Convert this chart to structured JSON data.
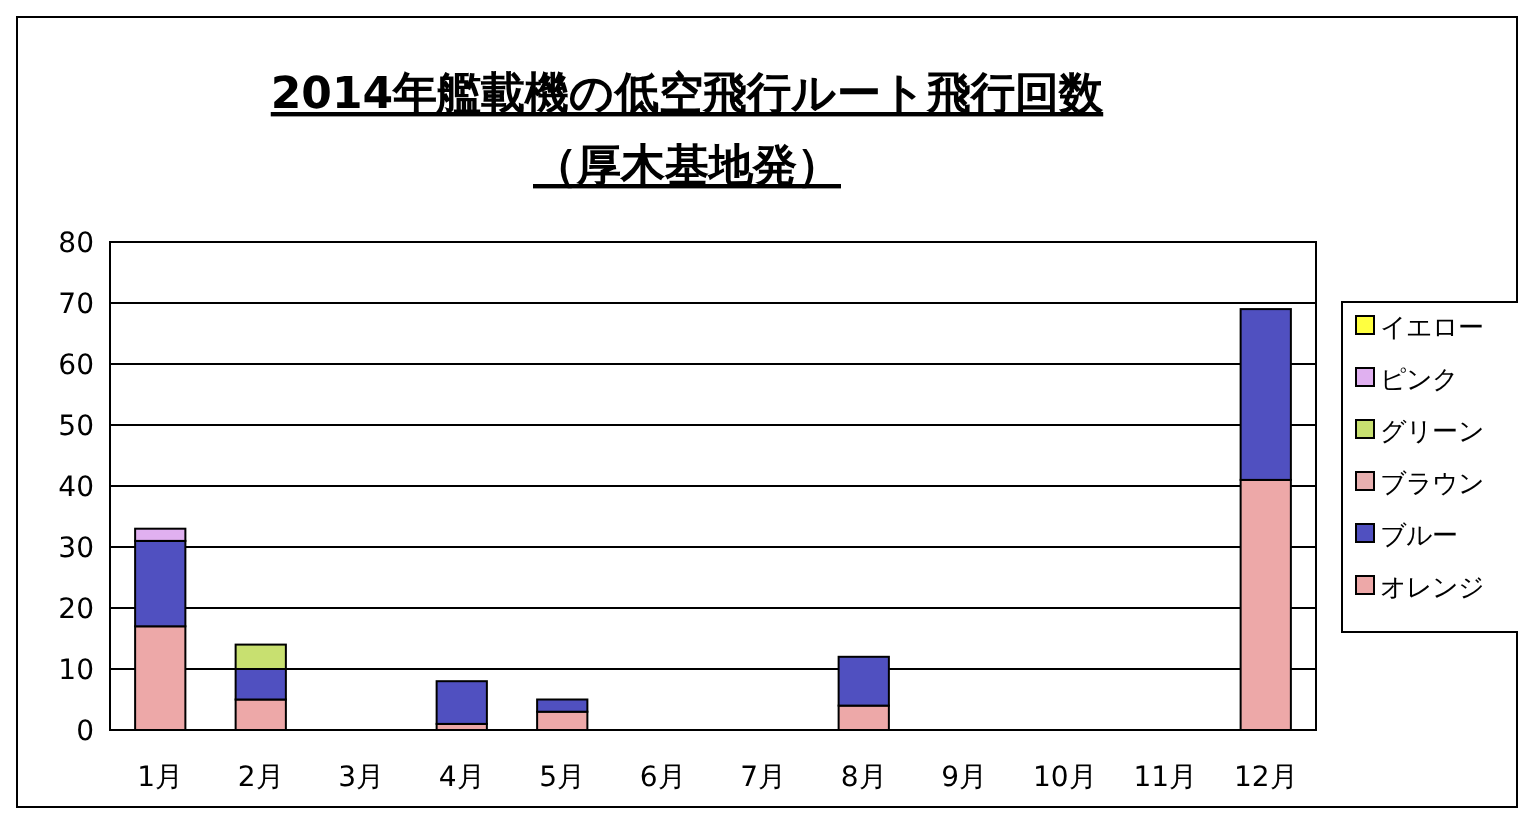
{
  "chart_data": {
    "type": "bar",
    "title": "2014年艦載機の低空飛行ルート飛行回数",
    "subtitle": "（厚木基地発）",
    "categories": [
      "1月",
      "2月",
      "3月",
      "4月",
      "5月",
      "6月",
      "7月",
      "8月",
      "9月",
      "10月",
      "11月",
      "12月"
    ],
    "stacked": true,
    "ylim": [
      0,
      80
    ],
    "yticks": [
      0,
      10,
      20,
      30,
      40,
      50,
      60,
      70,
      80
    ],
    "grid": "y",
    "legend": "right",
    "series": [
      {
        "name": "オレンジ",
        "color": "#eda8a8",
        "values": [
          17,
          5,
          0,
          1,
          3,
          0,
          0,
          4,
          0,
          0,
          0,
          41
        ]
      },
      {
        "name": "ブルー",
        "color": "#5050c0",
        "values": [
          14,
          5,
          0,
          7,
          2,
          0,
          0,
          8,
          0,
          0,
          0,
          28
        ]
      },
      {
        "name": "ブラウン",
        "color": "#e8b0b0",
        "values": [
          0,
          0,
          0,
          0,
          0,
          0,
          0,
          0,
          0,
          0,
          0,
          0
        ]
      },
      {
        "name": "グリーン",
        "color": "#c8e070",
        "values": [
          0,
          4,
          0,
          0,
          0,
          0,
          0,
          0,
          0,
          0,
          0,
          0
        ]
      },
      {
        "name": "ピンク",
        "color": "#e0b0f0",
        "values": [
          2,
          0,
          0,
          0,
          0,
          0,
          0,
          0,
          0,
          0,
          0,
          0
        ]
      },
      {
        "name": "イエロー",
        "color": "#ffff40",
        "values": [
          0,
          0,
          0,
          0,
          0,
          0,
          0,
          0,
          0,
          0,
          0,
          0
        ]
      }
    ]
  }
}
